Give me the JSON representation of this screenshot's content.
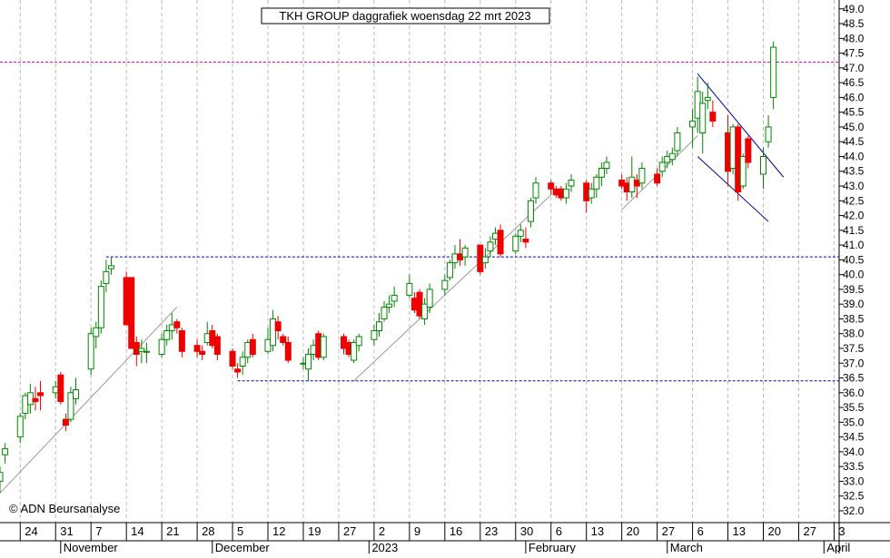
{
  "chart_data": {
    "type": "candlestick",
    "title": "TKH GROUP daggrafiek woensdag 22 mrt 2023",
    "copyright": "© ADN Beursanalyse",
    "ylim": [
      31.6,
      49.3
    ],
    "y_ticks": [
      32.0,
      32.5,
      33.0,
      33.5,
      34.0,
      34.5,
      35.0,
      35.5,
      36.0,
      36.5,
      37.0,
      37.5,
      38.0,
      38.5,
      39.0,
      39.5,
      40.0,
      40.5,
      41.0,
      41.5,
      42.0,
      42.5,
      43.0,
      43.5,
      44.0,
      44.5,
      45.0,
      45.5,
      46.0,
      46.5,
      47.0,
      47.5,
      48.0,
      48.5,
      49.0
    ],
    "x_start": "2022-10-20",
    "x_end": "2023-04-04",
    "day_ticks": [
      {
        "date": "2022-10-24",
        "label": "24"
      },
      {
        "date": "2022-10-31",
        "label": "31"
      },
      {
        "date": "2022-11-07",
        "label": "7"
      },
      {
        "date": "2022-11-14",
        "label": "14"
      },
      {
        "date": "2022-11-21",
        "label": "21"
      },
      {
        "date": "2022-11-28",
        "label": "28"
      },
      {
        "date": "2022-12-05",
        "label": "5"
      },
      {
        "date": "2022-12-12",
        "label": "12"
      },
      {
        "date": "2022-12-19",
        "label": "19"
      },
      {
        "date": "2022-12-26",
        "label": "27"
      },
      {
        "date": "2023-01-02",
        "label": "2"
      },
      {
        "date": "2023-01-09",
        "label": "9"
      },
      {
        "date": "2023-01-16",
        "label": "16"
      },
      {
        "date": "2023-01-23",
        "label": "23"
      },
      {
        "date": "2023-01-30",
        "label": "30"
      },
      {
        "date": "2023-02-06",
        "label": "6"
      },
      {
        "date": "2023-02-13",
        "label": "13"
      },
      {
        "date": "2023-02-20",
        "label": "20"
      },
      {
        "date": "2023-02-27",
        "label": "27"
      },
      {
        "date": "2023-03-06",
        "label": "6"
      },
      {
        "date": "2023-03-13",
        "label": "13"
      },
      {
        "date": "2023-03-20",
        "label": "20"
      },
      {
        "date": "2023-03-27",
        "label": "27"
      },
      {
        "date": "2023-04-03",
        "label": "3"
      }
    ],
    "month_labels": [
      {
        "date": "2022-11-01",
        "label": "November"
      },
      {
        "date": "2022-12-01",
        "label": "December"
      },
      {
        "date": "2023-01-01",
        "label": "2023"
      },
      {
        "date": "2023-02-01",
        "label": "February"
      },
      {
        "date": "2023-03-01",
        "label": "March"
      },
      {
        "date": "2023-04-01",
        "label": "April"
      }
    ],
    "candles": [
      {
        "date": "2022-10-20",
        "o": 33.0,
        "h": 33.5,
        "l": 32.6,
        "c": 33.3
      },
      {
        "date": "2022-10-21",
        "o": 33.9,
        "h": 34.3,
        "l": 33.6,
        "c": 34.1
      },
      {
        "date": "2022-10-24",
        "o": 34.5,
        "h": 35.3,
        "l": 34.3,
        "c": 35.2
      },
      {
        "date": "2022-10-25",
        "o": 35.3,
        "h": 36.0,
        "l": 35.1,
        "c": 35.9
      },
      {
        "date": "2022-10-26",
        "o": 35.6,
        "h": 36.3,
        "l": 35.3,
        "c": 36.0
      },
      {
        "date": "2022-10-27",
        "o": 35.8,
        "h": 36.2,
        "l": 35.4,
        "c": 35.7
      },
      {
        "date": "2022-10-28",
        "o": 36.0,
        "h": 36.4,
        "l": 35.4,
        "c": 35.9
      },
      {
        "date": "2022-10-31",
        "o": 36.0,
        "h": 36.4,
        "l": 35.8,
        "c": 36.2
      },
      {
        "date": "2022-11-01",
        "o": 36.6,
        "h": 36.7,
        "l": 35.6,
        "c": 35.7
      },
      {
        "date": "2022-11-02",
        "o": 35.1,
        "h": 35.3,
        "l": 34.7,
        "c": 34.9
      },
      {
        "date": "2022-11-03",
        "o": 35.1,
        "h": 36.2,
        "l": 35.0,
        "c": 36.0
      },
      {
        "date": "2022-11-04",
        "o": 35.8,
        "h": 36.5,
        "l": 35.6,
        "c": 36.1
      },
      {
        "date": "2022-11-07",
        "o": 36.8,
        "h": 38.2,
        "l": 36.6,
        "c": 38.0
      },
      {
        "date": "2022-11-08",
        "o": 37.9,
        "h": 38.4,
        "l": 37.5,
        "c": 38.2
      },
      {
        "date": "2022-11-09",
        "o": 38.2,
        "h": 39.8,
        "l": 38.0,
        "c": 39.6
      },
      {
        "date": "2022-11-10",
        "o": 39.7,
        "h": 40.5,
        "l": 39.4,
        "c": 40.1
      },
      {
        "date": "2022-11-11",
        "o": 40.2,
        "h": 40.6,
        "l": 40.0,
        "c": 40.3
      },
      {
        "date": "2022-11-14",
        "o": 39.9,
        "h": 40.1,
        "l": 38.3,
        "c": 38.3
      },
      {
        "date": "2022-11-15",
        "o": 39.9,
        "h": 39.9,
        "l": 37.5,
        "c": 37.5
      },
      {
        "date": "2022-11-16",
        "o": 37.7,
        "h": 37.9,
        "l": 36.9,
        "c": 37.3
      },
      {
        "date": "2022-11-17",
        "o": 37.4,
        "h": 37.8,
        "l": 37.0,
        "c": 37.5
      },
      {
        "date": "2022-11-18",
        "o": 37.4,
        "h": 37.7,
        "l": 37.0,
        "c": 37.4
      },
      {
        "date": "2022-11-21",
        "o": 37.3,
        "h": 38.0,
        "l": 37.2,
        "c": 37.8
      },
      {
        "date": "2022-11-22",
        "o": 37.8,
        "h": 38.3,
        "l": 37.6,
        "c": 38.1
      },
      {
        "date": "2022-11-23",
        "o": 38.1,
        "h": 38.7,
        "l": 37.8,
        "c": 38.3
      },
      {
        "date": "2022-11-24",
        "o": 38.4,
        "h": 38.5,
        "l": 38.0,
        "c": 38.2
      },
      {
        "date": "2022-11-25",
        "o": 38.1,
        "h": 38.2,
        "l": 37.2,
        "c": 37.4
      },
      {
        "date": "2022-11-28",
        "o": 37.6,
        "h": 37.8,
        "l": 37.2,
        "c": 37.4
      },
      {
        "date": "2022-11-29",
        "o": 37.4,
        "h": 37.6,
        "l": 37.1,
        "c": 37.3
      },
      {
        "date": "2022-11-30",
        "o": 37.7,
        "h": 38.4,
        "l": 37.6,
        "c": 38.0
      },
      {
        "date": "2022-12-01",
        "o": 38.1,
        "h": 38.3,
        "l": 37.5,
        "c": 37.6
      },
      {
        "date": "2022-12-02",
        "o": 37.9,
        "h": 38.0,
        "l": 37.1,
        "c": 37.3
      },
      {
        "date": "2022-12-05",
        "o": 37.4,
        "h": 37.5,
        "l": 36.8,
        "c": 36.9
      },
      {
        "date": "2022-12-06",
        "o": 36.8,
        "h": 37.0,
        "l": 36.5,
        "c": 36.7
      },
      {
        "date": "2022-12-07",
        "o": 36.9,
        "h": 37.4,
        "l": 36.6,
        "c": 37.2
      },
      {
        "date": "2022-12-08",
        "o": 37.2,
        "h": 37.8,
        "l": 37.0,
        "c": 37.7
      },
      {
        "date": "2022-12-09",
        "o": 37.8,
        "h": 38.0,
        "l": 37.2,
        "c": 37.3
      },
      {
        "date": "2022-12-12",
        "o": 37.4,
        "h": 38.2,
        "l": 37.3,
        "c": 37.8
      },
      {
        "date": "2022-12-13",
        "o": 37.6,
        "h": 38.8,
        "l": 37.4,
        "c": 38.5
      },
      {
        "date": "2022-12-14",
        "o": 38.4,
        "h": 38.6,
        "l": 37.8,
        "c": 38.1
      },
      {
        "date": "2022-12-15",
        "o": 37.9,
        "h": 38.0,
        "l": 37.6,
        "c": 37.7
      },
      {
        "date": "2022-12-16",
        "o": 37.7,
        "h": 37.9,
        "l": 37.0,
        "c": 37.1
      },
      {
        "date": "2022-12-19",
        "o": 37.0,
        "h": 37.2,
        "l": 36.8,
        "c": 37.0
      },
      {
        "date": "2022-12-20",
        "o": 36.8,
        "h": 37.5,
        "l": 36.4,
        "c": 37.3
      },
      {
        "date": "2022-12-21",
        "o": 37.3,
        "h": 37.8,
        "l": 37.1,
        "c": 37.6
      },
      {
        "date": "2022-12-22",
        "o": 38.0,
        "h": 38.1,
        "l": 37.1,
        "c": 37.2
      },
      {
        "date": "2022-12-23",
        "o": 37.2,
        "h": 38.0,
        "l": 37.1,
        "c": 37.9
      },
      {
        "date": "2022-12-27",
        "o": 37.9,
        "h": 38.0,
        "l": 37.3,
        "c": 37.5
      },
      {
        "date": "2022-12-28",
        "o": 37.7,
        "h": 37.8,
        "l": 37.2,
        "c": 37.3
      },
      {
        "date": "2022-12-29",
        "o": 37.1,
        "h": 37.8,
        "l": 37.0,
        "c": 37.7
      },
      {
        "date": "2022-12-30",
        "o": 37.6,
        "h": 38.0,
        "l": 37.4,
        "c": 37.9
      },
      {
        "date": "2023-01-02",
        "o": 37.8,
        "h": 38.3,
        "l": 37.6,
        "c": 38.1
      },
      {
        "date": "2023-01-03",
        "o": 38.1,
        "h": 38.7,
        "l": 37.9,
        "c": 38.4
      },
      {
        "date": "2023-01-04",
        "o": 38.5,
        "h": 39.1,
        "l": 38.4,
        "c": 38.9
      },
      {
        "date": "2023-01-05",
        "o": 38.9,
        "h": 39.3,
        "l": 38.7,
        "c": 39.0
      },
      {
        "date": "2023-01-06",
        "o": 39.1,
        "h": 39.6,
        "l": 38.9,
        "c": 39.3
      },
      {
        "date": "2023-01-09",
        "o": 39.3,
        "h": 40.0,
        "l": 39.2,
        "c": 39.7
      },
      {
        "date": "2023-01-10",
        "o": 39.2,
        "h": 39.4,
        "l": 38.7,
        "c": 38.8
      },
      {
        "date": "2023-01-11",
        "o": 39.4,
        "h": 39.5,
        "l": 38.5,
        "c": 38.6
      },
      {
        "date": "2023-01-12",
        "o": 38.5,
        "h": 39.2,
        "l": 38.3,
        "c": 39.0
      },
      {
        "date": "2023-01-13",
        "o": 38.9,
        "h": 39.7,
        "l": 38.7,
        "c": 39.5
      },
      {
        "date": "2023-01-16",
        "o": 39.5,
        "h": 40.0,
        "l": 39.3,
        "c": 39.8
      },
      {
        "date": "2023-01-17",
        "o": 39.9,
        "h": 40.5,
        "l": 39.8,
        "c": 40.4
      },
      {
        "date": "2023-01-18",
        "o": 40.4,
        "h": 41.0,
        "l": 40.2,
        "c": 40.7
      },
      {
        "date": "2023-01-19",
        "o": 40.7,
        "h": 41.2,
        "l": 40.3,
        "c": 40.5
      },
      {
        "date": "2023-01-20",
        "o": 40.6,
        "h": 41.0,
        "l": 40.3,
        "c": 40.9
      },
      {
        "date": "2023-01-23",
        "o": 41.0,
        "h": 41.0,
        "l": 40.0,
        "c": 40.1
      },
      {
        "date": "2023-01-24",
        "o": 40.4,
        "h": 40.9,
        "l": 40.2,
        "c": 40.6
      },
      {
        "date": "2023-01-25",
        "o": 40.8,
        "h": 41.3,
        "l": 40.6,
        "c": 41.1
      },
      {
        "date": "2023-01-26",
        "o": 41.2,
        "h": 41.6,
        "l": 41.0,
        "c": 41.4
      },
      {
        "date": "2023-01-27",
        "o": 41.5,
        "h": 41.7,
        "l": 40.6,
        "c": 40.7
      },
      {
        "date": "2023-01-30",
        "o": 40.8,
        "h": 41.4,
        "l": 40.7,
        "c": 41.3
      },
      {
        "date": "2023-01-31",
        "o": 41.3,
        "h": 41.7,
        "l": 41.1,
        "c": 41.5
      },
      {
        "date": "2023-02-01",
        "o": 41.2,
        "h": 41.6,
        "l": 40.9,
        "c": 41.1
      },
      {
        "date": "2023-02-02",
        "o": 41.8,
        "h": 42.6,
        "l": 41.6,
        "c": 42.5
      },
      {
        "date": "2023-02-03",
        "o": 42.6,
        "h": 43.3,
        "l": 42.4,
        "c": 43.1
      },
      {
        "date": "2023-02-06",
        "o": 43.1,
        "h": 43.2,
        "l": 42.7,
        "c": 42.9
      },
      {
        "date": "2023-02-07",
        "o": 42.9,
        "h": 43.0,
        "l": 42.6,
        "c": 42.7
      },
      {
        "date": "2023-02-08",
        "o": 42.9,
        "h": 43.0,
        "l": 42.5,
        "c": 42.6
      },
      {
        "date": "2023-02-09",
        "o": 42.6,
        "h": 43.1,
        "l": 42.4,
        "c": 42.9
      },
      {
        "date": "2023-02-10",
        "o": 43.0,
        "h": 43.4,
        "l": 42.8,
        "c": 43.2
      },
      {
        "date": "2023-02-13",
        "o": 43.1,
        "h": 43.2,
        "l": 42.1,
        "c": 42.5
      },
      {
        "date": "2023-02-14",
        "o": 42.6,
        "h": 43.1,
        "l": 42.4,
        "c": 42.9
      },
      {
        "date": "2023-02-15",
        "o": 42.9,
        "h": 43.4,
        "l": 42.6,
        "c": 43.3
      },
      {
        "date": "2023-02-16",
        "o": 43.3,
        "h": 43.8,
        "l": 43.0,
        "c": 43.6
      },
      {
        "date": "2023-02-17",
        "o": 43.6,
        "h": 44.0,
        "l": 43.4,
        "c": 43.8
      },
      {
        "date": "2023-02-20",
        "o": 43.2,
        "h": 43.4,
        "l": 42.9,
        "c": 43.0
      },
      {
        "date": "2023-02-21",
        "o": 43.1,
        "h": 43.3,
        "l": 42.5,
        "c": 42.8
      },
      {
        "date": "2023-02-22",
        "o": 42.8,
        "h": 44.0,
        "l": 42.6,
        "c": 43.3
      },
      {
        "date": "2023-02-23",
        "o": 43.2,
        "h": 43.4,
        "l": 42.6,
        "c": 43.0
      },
      {
        "date": "2023-02-24",
        "o": 43.1,
        "h": 43.8,
        "l": 42.9,
        "c": 43.6
      },
      {
        "date": "2023-02-27",
        "o": 43.4,
        "h": 43.6,
        "l": 43.0,
        "c": 43.1
      },
      {
        "date": "2023-02-28",
        "o": 43.5,
        "h": 44.0,
        "l": 43.3,
        "c": 43.8
      },
      {
        "date": "2023-03-01",
        "o": 43.8,
        "h": 44.2,
        "l": 43.6,
        "c": 44.0
      },
      {
        "date": "2023-03-02",
        "o": 43.9,
        "h": 44.3,
        "l": 43.7,
        "c": 44.1
      },
      {
        "date": "2023-03-03",
        "o": 44.2,
        "h": 45.0,
        "l": 44.0,
        "c": 44.8
      },
      {
        "date": "2023-03-06",
        "o": 45.0,
        "h": 45.6,
        "l": 44.3,
        "c": 45.2
      },
      {
        "date": "2023-03-07",
        "o": 45.3,
        "h": 46.7,
        "l": 44.8,
        "c": 46.2
      },
      {
        "date": "2023-03-08",
        "o": 44.8,
        "h": 46.2,
        "l": 44.1,
        "c": 45.8
      },
      {
        "date": "2023-03-09",
        "o": 45.9,
        "h": 46.5,
        "l": 45.6,
        "c": 46.0
      },
      {
        "date": "2023-03-10",
        "o": 45.5,
        "h": 45.9,
        "l": 45.0,
        "c": 45.2
      },
      {
        "date": "2023-03-13",
        "o": 44.8,
        "h": 45.4,
        "l": 43.0,
        "c": 43.5
      },
      {
        "date": "2023-03-14",
        "o": 43.6,
        "h": 45.1,
        "l": 43.4,
        "c": 45.0
      },
      {
        "date": "2023-03-15",
        "o": 45.0,
        "h": 45.1,
        "l": 42.5,
        "c": 42.8
      },
      {
        "date": "2023-03-16",
        "o": 43.0,
        "h": 44.1,
        "l": 42.9,
        "c": 44.0
      },
      {
        "date": "2023-03-17",
        "o": 44.6,
        "h": 44.7,
        "l": 43.6,
        "c": 43.8
      },
      {
        "date": "2023-03-20",
        "o": 43.4,
        "h": 44.3,
        "l": 42.9,
        "c": 44.0
      },
      {
        "date": "2023-03-21",
        "o": 44.5,
        "h": 45.4,
        "l": 44.3,
        "c": 45.0
      },
      {
        "date": "2023-03-22",
        "o": 46.0,
        "h": 47.9,
        "l": 45.6,
        "c": 47.7
      }
    ],
    "horizontal_lines": [
      {
        "value": 47.2,
        "from": "2022-10-20",
        "to": "2023-04-04",
        "color": "#cc00cc"
      },
      {
        "value": 40.6,
        "from": "2022-11-10",
        "to": "2023-04-04",
        "color": "#0000aa"
      },
      {
        "value": 36.4,
        "from": "2022-12-06",
        "to": "2023-04-04",
        "color": "#0000aa"
      }
    ],
    "trend_lines": [
      {
        "from": [
          "2022-10-20",
          32.6
        ],
        "to": [
          "2022-11-24",
          38.9
        ],
        "color": "#999999"
      },
      {
        "from": [
          "2022-12-29",
          36.4
        ],
        "to": [
          "2023-02-06",
          42.7
        ],
        "color": "#999999"
      },
      {
        "from": [
          "2023-02-20",
          42.2
        ],
        "to": [
          "2023-03-07",
          44.7
        ],
        "color": "#999999"
      },
      {
        "from": [
          "2023-03-07",
          46.8
        ],
        "to": [
          "2023-03-24",
          43.3
        ],
        "color": "#000099"
      },
      {
        "from": [
          "2023-03-07",
          44.0
        ],
        "to": [
          "2023-03-21",
          41.8
        ],
        "color": "#000099"
      }
    ],
    "colors": {
      "up": "#008800",
      "down": "#ee0000",
      "grid": "#bbbbbb",
      "axis": "#000000"
    }
  }
}
